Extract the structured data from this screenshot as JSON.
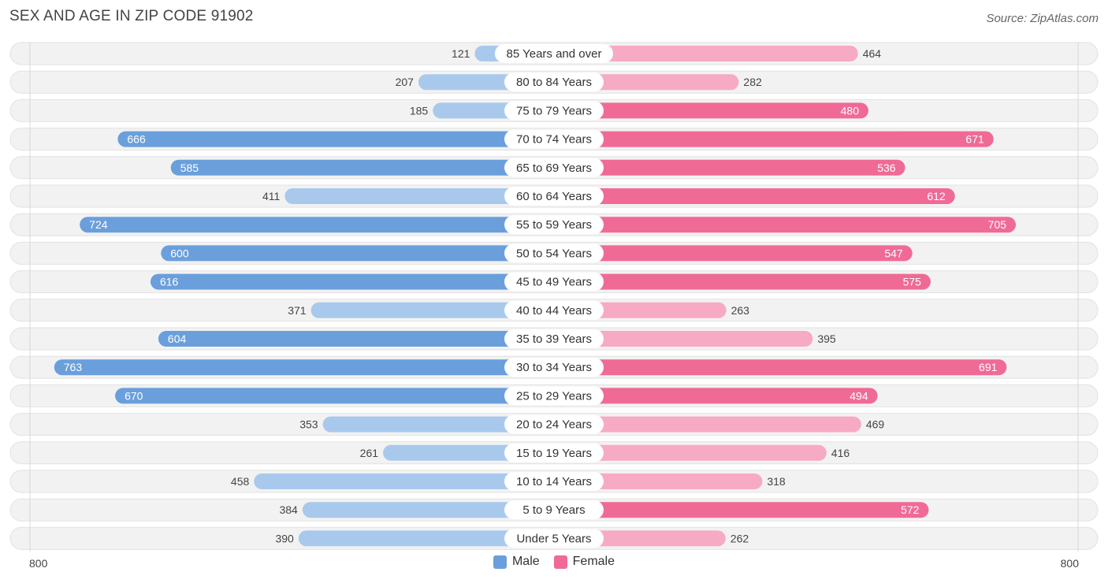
{
  "title": "SEX AND AGE IN ZIP CODE 91902",
  "source": "Source: ZipAtlas.com",
  "legend": {
    "male": "Male",
    "female": "Female"
  },
  "axis": {
    "left_label": "800",
    "right_label": "800"
  },
  "colors": {
    "male_dark": "#6a9fdc",
    "male_light": "#a9c9ec",
    "female_dark": "#f06a96",
    "female_light": "#f7aac4",
    "row_bg": "#efefef"
  },
  "chart_data": {
    "type": "bar",
    "orientation": "horizontal-diverging",
    "max": 800,
    "categories": [
      "85 Years and over",
      "80 to 84 Years",
      "75 to 79 Years",
      "70 to 74 Years",
      "65 to 69 Years",
      "60 to 64 Years",
      "55 to 59 Years",
      "50 to 54 Years",
      "45 to 49 Years",
      "40 to 44 Years",
      "35 to 39 Years",
      "30 to 34 Years",
      "25 to 29 Years",
      "20 to 24 Years",
      "15 to 19 Years",
      "10 to 14 Years",
      "5 to 9 Years",
      "Under 5 Years"
    ],
    "series": [
      {
        "name": "Male",
        "values": [
          121,
          207,
          185,
          666,
          585,
          411,
          724,
          600,
          616,
          371,
          604,
          763,
          670,
          353,
          261,
          458,
          384,
          390
        ]
      },
      {
        "name": "Female",
        "values": [
          464,
          282,
          480,
          671,
          536,
          612,
          705,
          547,
          575,
          263,
          395,
          691,
          494,
          469,
          416,
          318,
          572,
          262
        ]
      }
    ]
  }
}
